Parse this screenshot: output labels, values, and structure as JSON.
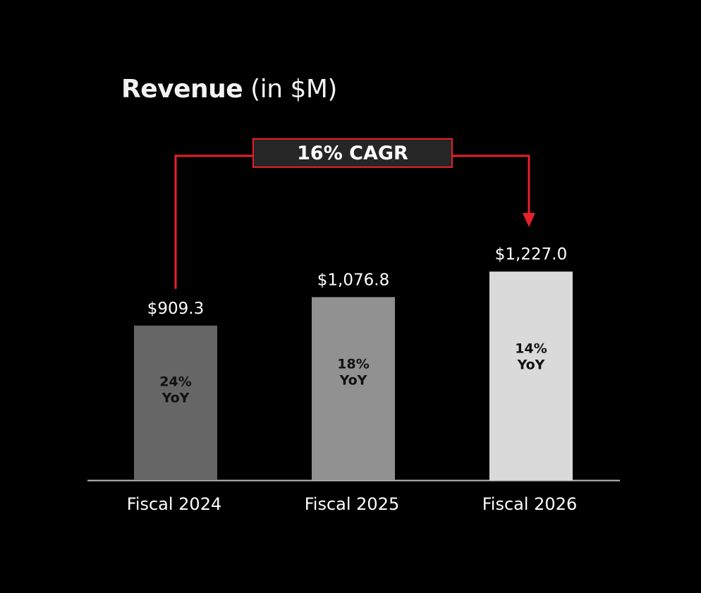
{
  "title": {
    "bold": "Revenue",
    "rest": "(in $M)"
  },
  "cagr_label": "16% CAGR",
  "colors": {
    "background": "#000000",
    "accent": "#e8202a",
    "bars": [
      "#666666",
      "#919191",
      "#dadada"
    ],
    "axis": "#bfbfbf",
    "text": "#ffffff",
    "inner_label": "#111111"
  },
  "chart_data": {
    "type": "bar",
    "title": "Revenue (in $M)",
    "categories": [
      "Fiscal 2024",
      "Fiscal 2025",
      "Fiscal 2026"
    ],
    "values": [
      909.3,
      1076.8,
      1227.0
    ],
    "value_labels": [
      "$909.3",
      "$1,076.8",
      "$1,227.0"
    ],
    "yoy_labels": [
      [
        "24%",
        "YoY"
      ],
      [
        "18%",
        "YoY"
      ],
      [
        "14%",
        "YoY"
      ]
    ],
    "annotation": "16% CAGR",
    "xlabel": "",
    "ylabel": "",
    "grid": false,
    "legend": "none"
  }
}
